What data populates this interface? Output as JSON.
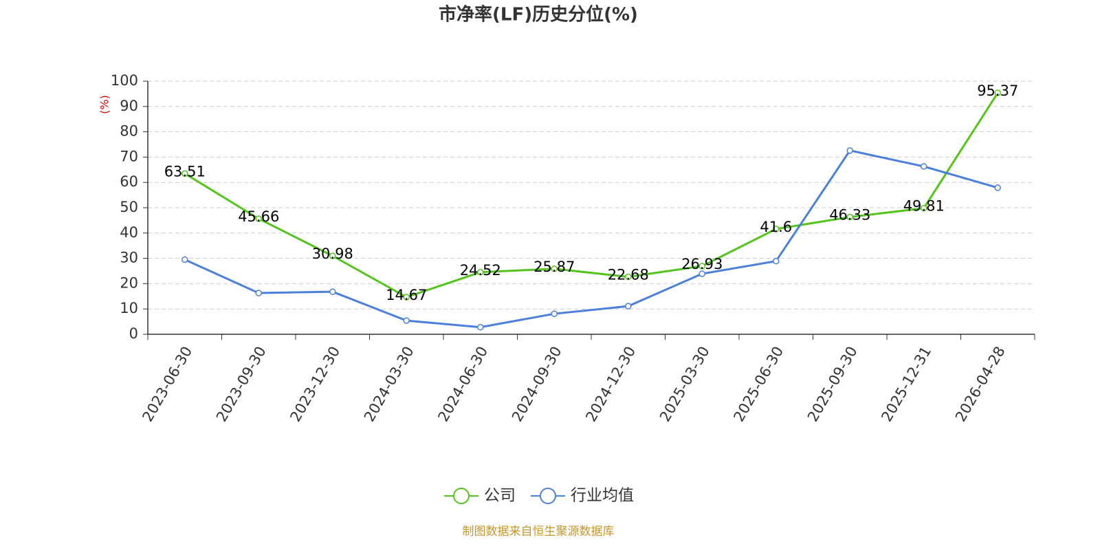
{
  "chart_data": {
    "type": "line",
    "title": "市净率(LF)历史分位(%)",
    "y_label": "(%)",
    "source": "制图数据来自恒生聚源数据库",
    "categories": [
      "2023-06-30",
      "2023-09-30",
      "2023-12-30",
      "2024-03-30",
      "2024-06-30",
      "2024-09-30",
      "2024-12-30",
      "2025-03-30",
      "2025-06-30",
      "2025-09-30",
      "2025-12-31",
      "2026-04-28"
    ],
    "series": [
      {
        "name": "公司",
        "color": "#52c41a",
        "values": [
          63.51,
          45.66,
          30.98,
          14.67,
          24.52,
          25.87,
          22.68,
          26.93,
          41.6,
          46.33,
          49.81,
          95.37
        ],
        "show_labels": true
      },
      {
        "name": "行业均值",
        "color": "#4a7fdc",
        "values": [
          29.5,
          16.3,
          16.8,
          5.4,
          2.8,
          8.1,
          11.1,
          23.9,
          28.9,
          72.6,
          66.3,
          57.9
        ],
        "show_labels": false
      }
    ],
    "ylim": [
      0,
      100
    ],
    "yticks": [
      0,
      10,
      20,
      30,
      40,
      50,
      60,
      70,
      80,
      90,
      100
    ],
    "grid": true
  }
}
